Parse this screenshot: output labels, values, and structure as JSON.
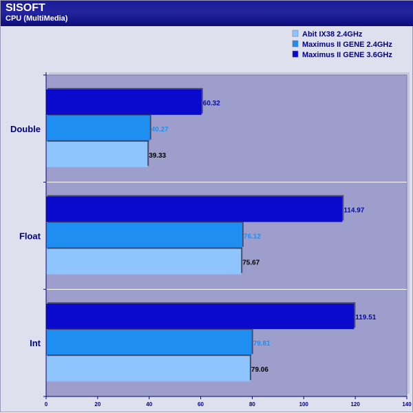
{
  "header": {
    "title": "SISOFT",
    "subtitle": "CPU (MultiMedia)"
  },
  "colors": {
    "header_bg": "#1a1a96",
    "plot_bg": "#9e9ecc",
    "page_bg": "#dfe0ee",
    "text_dark": "#000080",
    "series": [
      "#8ec5ff",
      "#1e8ff0",
      "#0a0acc"
    ],
    "label_colors": [
      "#000000",
      "#1e8ff0",
      "#0a0aa0"
    ]
  },
  "chart_data": {
    "type": "bar",
    "orientation": "horizontal",
    "categories": [
      "Double",
      "Float",
      "Int"
    ],
    "series": [
      {
        "name": "Abit IX38 2.4GHz",
        "values": [
          39.33,
          75.67,
          79.06
        ]
      },
      {
        "name": "Maximus II GENE 2.4GHz",
        "values": [
          40.27,
          76.12,
          79.81
        ]
      },
      {
        "name": "Maximus II GENE 3.6GHz",
        "values": [
          60.32,
          114.97,
          119.51
        ]
      }
    ],
    "value_labels": [
      [
        "39.33",
        "75.67",
        "79.06"
      ],
      [
        "40.27",
        "76.12",
        "79.81"
      ],
      [
        "60.32",
        "114.97",
        "119.51"
      ]
    ],
    "xlim": [
      0,
      140
    ],
    "xticks": [
      0,
      20,
      40,
      60,
      80,
      100,
      120,
      140
    ],
    "xtick_labels": [
      "0",
      "20",
      "40",
      "60",
      "80",
      "100",
      "120",
      "140"
    ],
    "legend_position": "top-right",
    "grid": false
  }
}
